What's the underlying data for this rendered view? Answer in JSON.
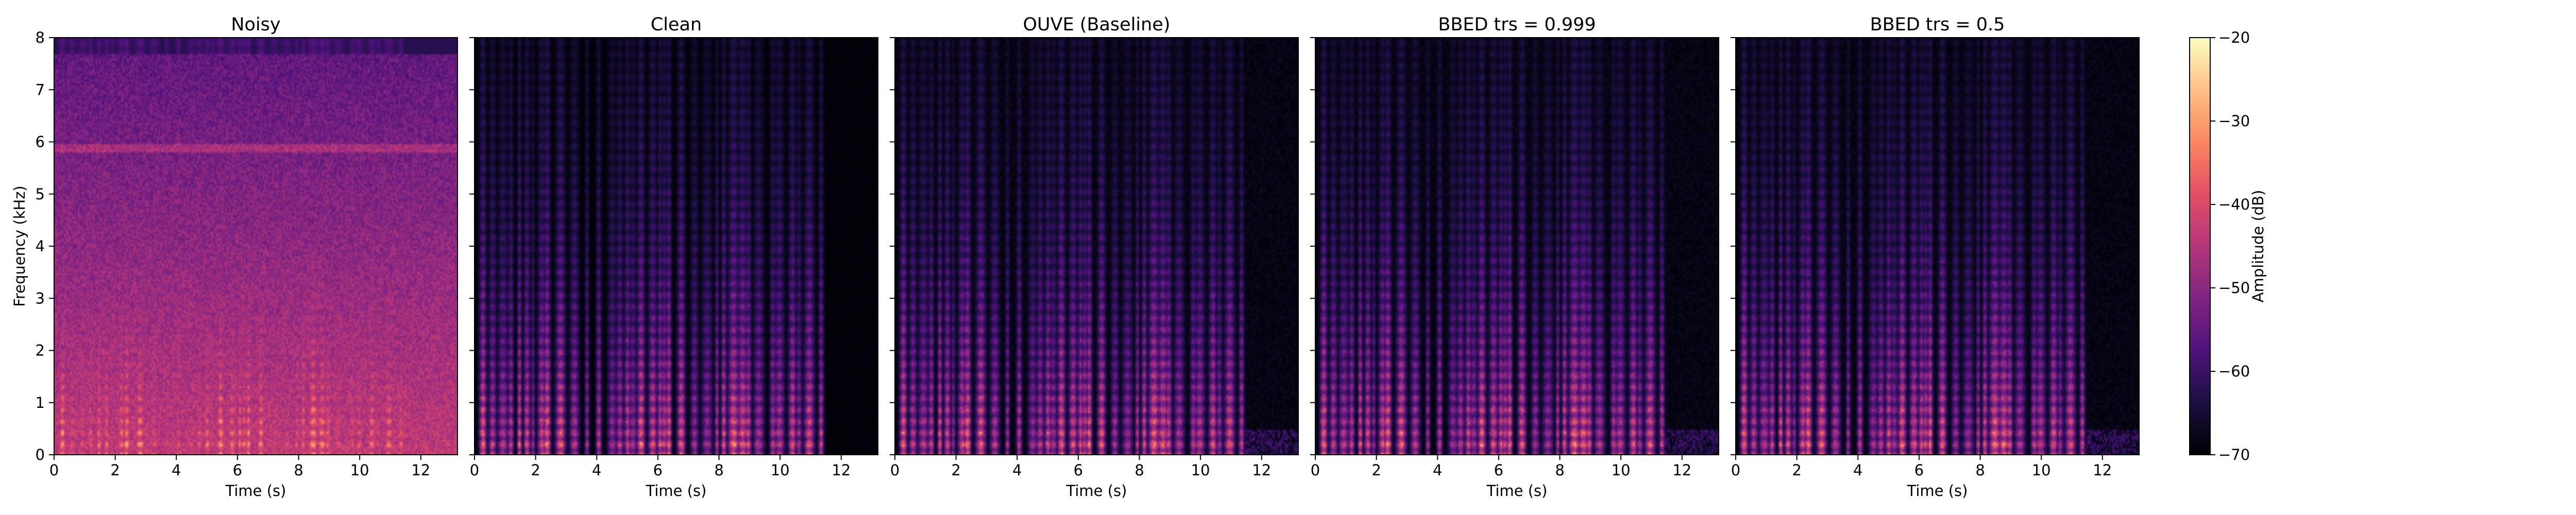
{
  "figure": {
    "colormap": "magma",
    "background": "#ffffff"
  },
  "chart_data": [
    {
      "type": "heatmap",
      "title": "Noisy",
      "xlabel": "Time (s)",
      "ylabel": "Frequency (kHz)",
      "xlim": [
        0,
        13.2
      ],
      "ylim": [
        0,
        8
      ],
      "xticks": [
        "0",
        "2",
        "4",
        "6",
        "8",
        "10",
        "12"
      ],
      "yticks": [
        "0",
        "1",
        "2",
        "3",
        "4",
        "5",
        "6",
        "7",
        "8"
      ]
    },
    {
      "type": "heatmap",
      "title": "Clean",
      "xlabel": "Time (s)",
      "ylabel": "",
      "xlim": [
        0,
        13.2
      ],
      "ylim": [
        0,
        8
      ],
      "xticks": [
        "0",
        "2",
        "4",
        "6",
        "8",
        "10",
        "12"
      ],
      "yticks": []
    },
    {
      "type": "heatmap",
      "title": "OUVE (Baseline)",
      "xlabel": "Time (s)",
      "ylabel": "",
      "xlim": [
        0,
        13.2
      ],
      "ylim": [
        0,
        8
      ],
      "xticks": [
        "0",
        "2",
        "4",
        "6",
        "8",
        "10",
        "12"
      ],
      "yticks": []
    },
    {
      "type": "heatmap",
      "title": "BBED trs = 0.999",
      "xlabel": "Time (s)",
      "ylabel": "",
      "xlim": [
        0,
        13.2
      ],
      "ylim": [
        0,
        8
      ],
      "xticks": [
        "0",
        "2",
        "4",
        "6",
        "8",
        "10",
        "12"
      ],
      "yticks": []
    },
    {
      "type": "heatmap",
      "title": "BBED trs = 0.5",
      "xlabel": "Time (s)",
      "ylabel": "",
      "xlim": [
        0,
        13.2
      ],
      "ylim": [
        0,
        8
      ],
      "xticks": [
        "0",
        "2",
        "4",
        "6",
        "8",
        "10",
        "12"
      ],
      "yticks": []
    }
  ],
  "colorbar": {
    "label": "Amplitude (dB)",
    "range": [
      -70,
      -20
    ],
    "ticks": [
      "−20",
      "−30",
      "−40",
      "−50",
      "−60",
      "−70"
    ]
  }
}
